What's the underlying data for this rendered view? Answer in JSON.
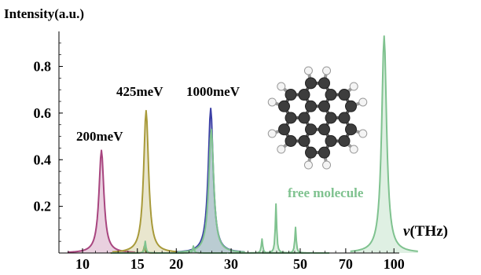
{
  "chart_data": {
    "type": "line",
    "title": "",
    "ylabel": "Intensity(a.u.)",
    "xlabel_symbol": "ν",
    "xlabel_unit": "(THz)",
    "x_scale": "log",
    "xlim": [
      8.4,
      104
    ],
    "ylim": [
      0,
      0.95
    ],
    "x_ticks": [
      10,
      15,
      20,
      30,
      50,
      70,
      100
    ],
    "x_tick_labels": [
      "10",
      "15",
      "20",
      "30",
      "50",
      "70",
      "100"
    ],
    "y_ticks": [
      0.2,
      0.4,
      0.6,
      0.8
    ],
    "y_tick_labels": [
      "0.2",
      "0.4",
      "0.6",
      "0.8"
    ],
    "grid": false,
    "series": [
      {
        "name": "200meV",
        "color": "#a8457f",
        "peaks": [
          {
            "x": 11.5,
            "y": 0.44
          }
        ]
      },
      {
        "name": "425meV",
        "color": "#a89a3a",
        "peaks": [
          {
            "x": 16.0,
            "y": 0.61
          },
          {
            "x": 15.8,
            "y": 0.03
          }
        ]
      },
      {
        "name": "1000meV",
        "color": "#3b3fa5",
        "peaks": [
          {
            "x": 25.8,
            "y": 0.62
          }
        ]
      },
      {
        "name": "free molecule",
        "color": "#7fc28f",
        "peaks": [
          {
            "x": 15.9,
            "y": 0.05
          },
          {
            "x": 22.7,
            "y": 0.03
          },
          {
            "x": 25.9,
            "y": 0.53
          },
          {
            "x": 37.7,
            "y": 0.06
          },
          {
            "x": 41.8,
            "y": 0.21
          },
          {
            "x": 48.3,
            "y": 0.11
          },
          {
            "x": 93.0,
            "y": 0.93
          }
        ]
      }
    ],
    "annotations": [
      {
        "text": "200meV",
        "color": "#000000"
      },
      {
        "text": "425meV",
        "color": "#000000"
      },
      {
        "text": "1000meV",
        "color": "#000000"
      },
      {
        "text": "free molecule",
        "color": "#7fc28f"
      }
    ]
  },
  "inset": {
    "carbon_color": "#3d3d3d",
    "hydrogen_color": "#f4f4f4"
  }
}
